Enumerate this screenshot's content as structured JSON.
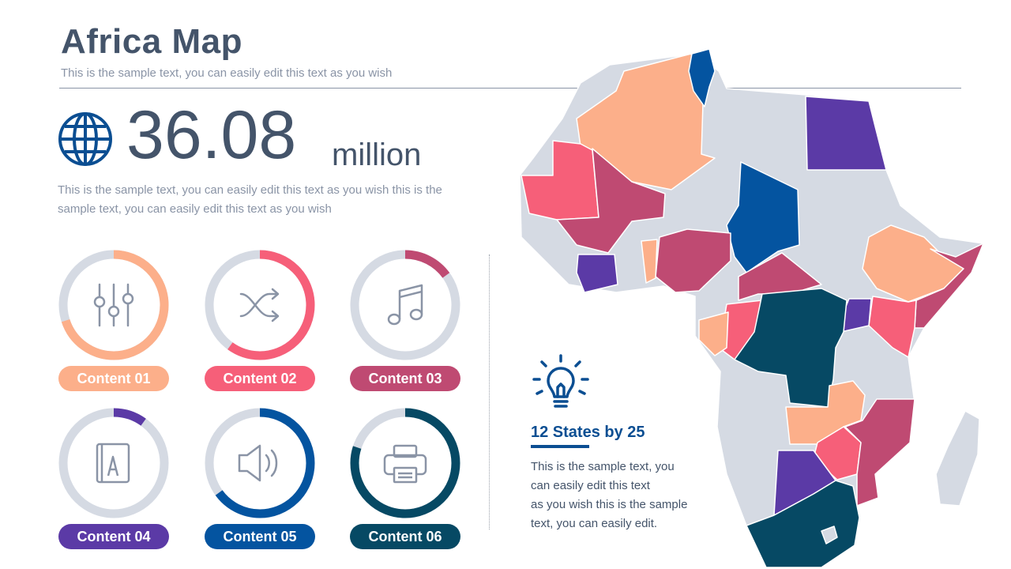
{
  "header": {
    "title": "Africa Map",
    "subtitle": "This is the sample text, you can easily edit this text as you wish"
  },
  "stat": {
    "value": "36.08",
    "unit": "million",
    "description": "This is the sample text, you can easily edit this text as you wish this is the sample text, you can easily edit this text as you wish",
    "icon": "globe-icon"
  },
  "contents": [
    {
      "label": "Content 01",
      "icon": "equalizer-sliders-icon",
      "percent": 70,
      "color": "#fcaf8a"
    },
    {
      "label": "Content 02",
      "icon": "shuffle-icon",
      "percent": 60,
      "color": "#f65f79"
    },
    {
      "label": "Content 03",
      "icon": "music-note-icon",
      "percent": 15,
      "color": "#bf4a72"
    },
    {
      "label": "Content 04",
      "icon": "book-icon",
      "percent": 10,
      "color": "#5b3aa6"
    },
    {
      "label": "Content 05",
      "icon": "speaker-icon",
      "percent": 65,
      "color": "#0454a0"
    },
    {
      "label": "Content 06",
      "icon": "printer-icon",
      "percent": 80,
      "color": "#064964"
    }
  ],
  "states": {
    "title": "12 States by 25",
    "lines": [
      "This is the sample text, you",
      "can easily edit this text",
      "as you wish this is the sample",
      "text, you can easily edit."
    ],
    "icon": "lightbulb-icon"
  },
  "colors": {
    "title": "#44546a",
    "muted": "#8a94a6",
    "track": "#d5dae3",
    "accent_blue": "#0b4e92",
    "map_base": "#d5dae3",
    "peach": "#fcaf8a",
    "pink": "#f65f79",
    "rose": "#bf4a72",
    "purple": "#5b3aa6",
    "blue": "#0454a0",
    "teal": "#064964"
  }
}
